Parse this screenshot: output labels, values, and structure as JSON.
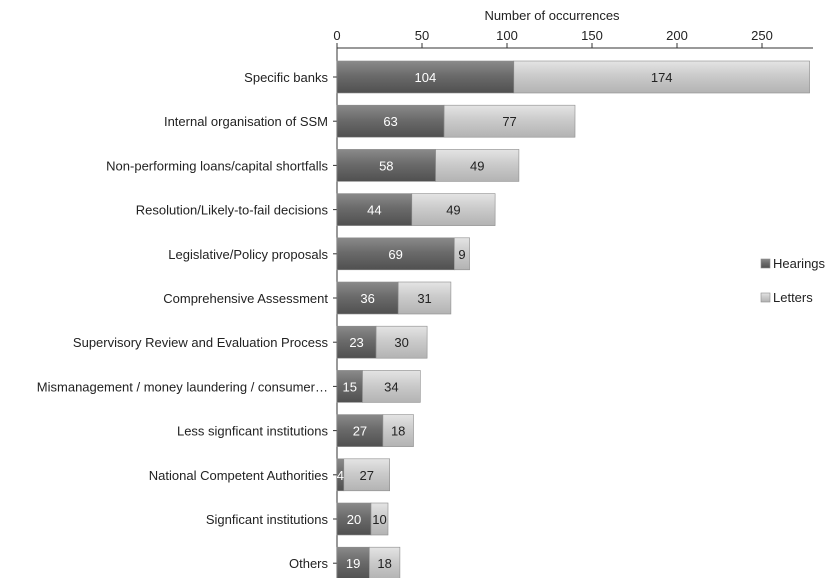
{
  "chart_data": {
    "type": "bar",
    "orientation": "horizontal",
    "stacked": true,
    "xlabel": "Number of occurrences",
    "xlim": [
      0,
      280
    ],
    "x_ticks": [
      0,
      50,
      100,
      150,
      200,
      250
    ],
    "grid": false,
    "legend_position": "right",
    "categories": [
      "Specific banks",
      "Internal organisation of SSM",
      "Non-performing loans/capital shortfalls",
      "Resolution/Likely-to-fail decisions",
      "Legislative/Policy proposals",
      "Comprehensive Assessment",
      "Supervisory Review and Evaluation Process",
      "Mismanagement / money laundering / consumer…",
      "Less signficant institutions",
      "National Competent Authorities",
      "Signficant institutions",
      "Others"
    ],
    "series": [
      {
        "name": "Hearings",
        "color": "#6b6b6b",
        "values": [
          104,
          63,
          58,
          44,
          69,
          36,
          23,
          15,
          27,
          4,
          20,
          19
        ]
      },
      {
        "name": "Letters",
        "color": "#c9c9c9",
        "values": [
          174,
          77,
          49,
          49,
          9,
          31,
          30,
          34,
          18,
          27,
          10,
          18
        ]
      }
    ]
  }
}
